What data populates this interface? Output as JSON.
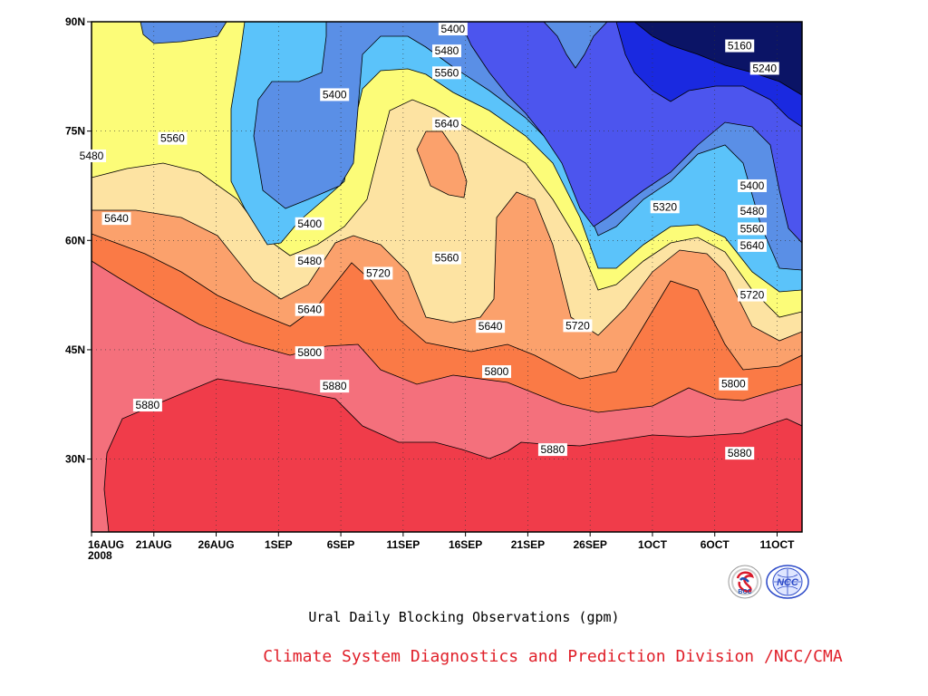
{
  "chart_data": {
    "type": "contour",
    "title": "Ural Daily Blocking Observations (gpm)",
    "xlabel": "",
    "ylabel": "",
    "x_ticks": [
      "16AUG",
      "21AUG",
      "26AUG",
      "1SEP",
      "6SEP",
      "11SEP",
      "16SEP",
      "21SEP",
      "26SEP",
      "1OCT",
      "6OCT",
      "11OCT"
    ],
    "x_year": "2008",
    "y_ticks": [
      "30N",
      "45N",
      "60N",
      "75N",
      "90N"
    ],
    "ylim": [
      20,
      90
    ],
    "contour_levels": [
      5160,
      5240,
      5320,
      5400,
      5480,
      5560,
      5640,
      5720,
      5800,
      5880
    ],
    "band_colors": [
      "#f03c4a",
      "#f4707c",
      "#fa7a46",
      "#fba16c",
      "#fde3a2",
      "#fcfc78",
      "#5bc3fa",
      "#5a8fe6",
      "#4c55ee",
      "#1a29e0",
      "#0b1466"
    ],
    "contour_labels": [
      {
        "value": "5880",
        "x": 4.5,
        "y": 37.4
      },
      {
        "value": "5880",
        "x": 19.5,
        "y": 40.0
      },
      {
        "value": "5880",
        "x": 37.0,
        "y": 31.3
      },
      {
        "value": "5880",
        "x": 52.0,
        "y": 30.8
      },
      {
        "value": "5800",
        "x": 17.5,
        "y": 44.6
      },
      {
        "value": "5800",
        "x": 32.5,
        "y": 42.0
      },
      {
        "value": "5800",
        "x": 51.5,
        "y": 40.3
      },
      {
        "value": "5720",
        "x": 23.0,
        "y": 55.5
      },
      {
        "value": "5720",
        "x": 39.0,
        "y": 48.3
      },
      {
        "value": "5720",
        "x": 53.0,
        "y": 52.5
      },
      {
        "value": "5640",
        "x": 2.0,
        "y": 63.0
      },
      {
        "value": "5640",
        "x": 17.5,
        "y": 50.5
      },
      {
        "value": "5640",
        "x": 32.0,
        "y": 48.2
      },
      {
        "value": "5640",
        "x": 28.5,
        "y": 76.0
      },
      {
        "value": "5640",
        "x": 53.0,
        "y": 59.3
      },
      {
        "value": "5560",
        "x": 6.5,
        "y": 74.0
      },
      {
        "value": "5560",
        "x": 28.5,
        "y": 57.6
      },
      {
        "value": "5560",
        "x": 28.5,
        "y": 83.0
      },
      {
        "value": "5560",
        "x": 53.0,
        "y": 61.6
      },
      {
        "value": "5480",
        "x": 0.0,
        "y": 71.6
      },
      {
        "value": "5480",
        "x": 17.5,
        "y": 57.2
      },
      {
        "value": "5480",
        "x": 28.5,
        "y": 86.0
      },
      {
        "value": "5480",
        "x": 53.0,
        "y": 64.0
      },
      {
        "value": "5400",
        "x": 19.5,
        "y": 80.0
      },
      {
        "value": "5400",
        "x": 17.5,
        "y": 62.3
      },
      {
        "value": "5400",
        "x": 29.0,
        "y": 89.0
      },
      {
        "value": "5400",
        "x": 53.0,
        "y": 67.5
      },
      {
        "value": "5320",
        "x": 46.0,
        "y": 64.6
      },
      {
        "value": "5240",
        "x": 54.0,
        "y": 83.6
      },
      {
        "value": "5160",
        "x": 52.0,
        "y": 86.7
      }
    ]
  },
  "footer": {
    "title": "Ural Daily Blocking Observations (gpm)",
    "credit": "Climate System Diagnostics and Prediction Division /NCC/CMA",
    "credit_color": "#e0202a"
  },
  "logos": [
    {
      "name": "BCC",
      "icon": "bcc-logo-icon",
      "text": "BCC"
    },
    {
      "name": "NCC",
      "icon": "ncc-logo-icon",
      "text": "NCC"
    }
  ]
}
